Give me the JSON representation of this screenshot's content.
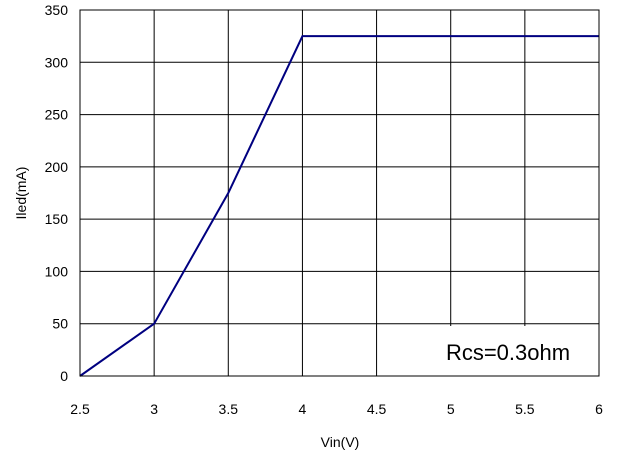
{
  "chart_data": {
    "type": "line",
    "xlabel": "Vin(V)",
    "ylabel": "Iled(mA)",
    "xlim": [
      2.5,
      6
    ],
    "ylim": [
      0,
      350
    ],
    "x_ticks": [
      2.5,
      3,
      3.5,
      4,
      4.5,
      5,
      5.5,
      6
    ],
    "x_tick_labels": [
      "2.5",
      "3",
      "3.5",
      "4",
      "4.5",
      "5",
      "5.5",
      "6"
    ],
    "y_ticks": [
      0,
      50,
      100,
      150,
      200,
      250,
      300,
      350
    ],
    "y_tick_labels": [
      "0",
      "50",
      "100",
      "150",
      "200",
      "250",
      "300",
      "350"
    ],
    "grid": true,
    "series": [
      {
        "x": [
          2.5,
          3.0,
          3.5,
          4.0,
          6.0
        ],
        "y": [
          0,
          50,
          175,
          325,
          325
        ]
      }
    ],
    "annotation": "Rcs=0.3ohm",
    "colors": {
      "line": "#000080",
      "grid": "#000000",
      "background": "#ffffff"
    }
  }
}
